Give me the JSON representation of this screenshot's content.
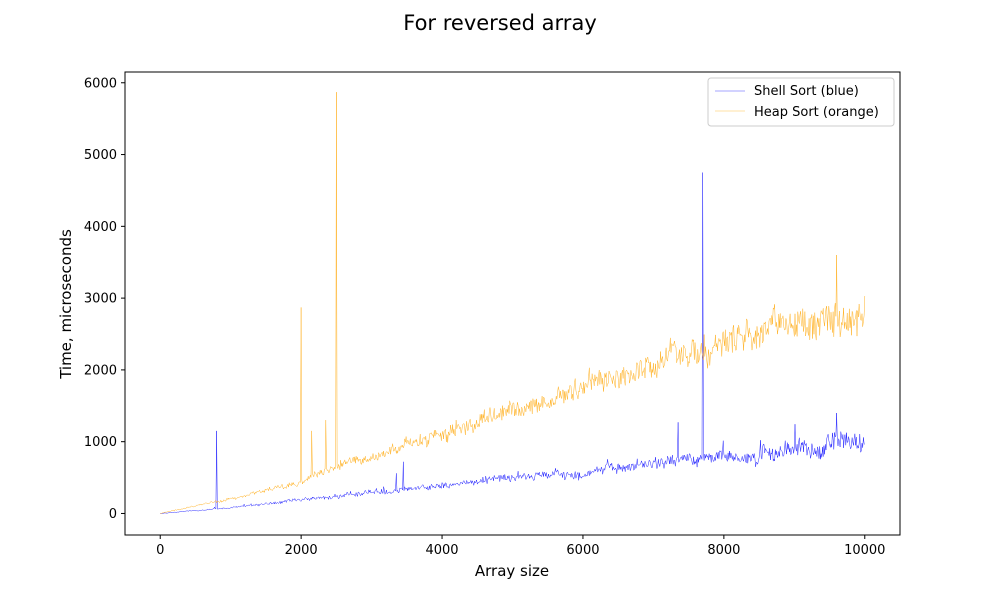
{
  "chart_data": {
    "type": "line",
    "title": "For reversed array",
    "xlabel": "Array size",
    "ylabel": "Time, microseconds",
    "xlim": [
      -500,
      10500
    ],
    "ylim": [
      -300,
      6150
    ],
    "x_ticks": [
      0,
      2000,
      4000,
      6000,
      8000,
      10000
    ],
    "y_ticks": [
      0,
      1000,
      2000,
      3000,
      4000,
      5000,
      6000
    ],
    "x_step": 10,
    "x_range": [
      0,
      10000
    ],
    "legend_position": "top-right",
    "grid": false,
    "series": [
      {
        "name": "Shell Sort (blue)",
        "color": "#0000ff",
        "trend": [
          [
            0,
            0
          ],
          [
            1000,
            80
          ],
          [
            2000,
            180
          ],
          [
            3000,
            300
          ],
          [
            4000,
            390
          ],
          [
            5000,
            500
          ],
          [
            6000,
            580
          ],
          [
            7000,
            690
          ],
          [
            8000,
            790
          ],
          [
            9000,
            880
          ],
          [
            10000,
            1000
          ]
        ],
        "noise": [
          [
            0,
            3
          ],
          [
            2000,
            25
          ],
          [
            4000,
            50
          ],
          [
            6000,
            70
          ],
          [
            8000,
            100
          ],
          [
            10000,
            170
          ]
        ],
        "spikes": [
          [
            800,
            1150
          ],
          [
            3350,
            560
          ],
          [
            3450,
            720
          ],
          [
            7350,
            1270
          ],
          [
            7700,
            4750
          ],
          [
            9600,
            1400
          ]
        ]
      },
      {
        "name": "Heap Sort (orange)",
        "color": "#ffa500",
        "trend": [
          [
            0,
            0
          ],
          [
            1000,
            210
          ],
          [
            2000,
            450
          ],
          [
            2500,
            650
          ],
          [
            3000,
            800
          ],
          [
            4000,
            1080
          ],
          [
            5000,
            1450
          ],
          [
            6000,
            1750
          ],
          [
            7000,
            2050
          ],
          [
            8000,
            2350
          ],
          [
            9000,
            2620
          ],
          [
            10000,
            2850
          ]
        ],
        "noise": [
          [
            0,
            5
          ],
          [
            2000,
            40
          ],
          [
            4000,
            100
          ],
          [
            6000,
            160
          ],
          [
            8000,
            220
          ],
          [
            10000,
            300
          ]
        ],
        "spikes": [
          [
            2000,
            2870
          ],
          [
            2150,
            1150
          ],
          [
            2350,
            1300
          ],
          [
            2500,
            5870
          ],
          [
            9600,
            3600
          ]
        ]
      }
    ]
  }
}
